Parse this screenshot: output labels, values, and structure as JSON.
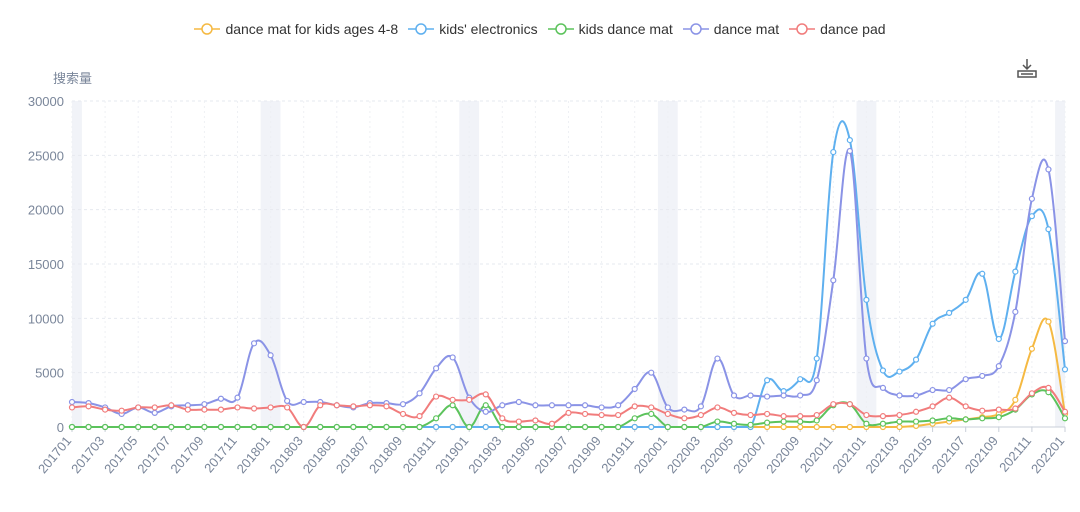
{
  "toolbar": {
    "download_icon": "download-icon"
  },
  "chart_data": {
    "type": "line",
    "ylabel": "搜索量",
    "ylim": [
      0,
      30000
    ],
    "yticks": [
      "30000",
      "25000",
      "20000",
      "15000",
      "10000",
      "5000",
      "0"
    ],
    "x": [
      "201701",
      "201702",
      "201703",
      "201704",
      "201705",
      "201706",
      "201707",
      "201708",
      "201709",
      "201710",
      "201711",
      "201712",
      "201801",
      "201802",
      "201803",
      "201804",
      "201805",
      "201806",
      "201807",
      "201808",
      "201809",
      "201810",
      "201811",
      "201812",
      "201901",
      "201902",
      "201903",
      "201904",
      "201905",
      "201906",
      "201907",
      "201908",
      "201909",
      "201910",
      "201911",
      "201912",
      "202001",
      "202002",
      "202003",
      "202004",
      "202005",
      "202006",
      "202007",
      "202008",
      "202009",
      "202010",
      "202011",
      "202012",
      "202101",
      "202102",
      "202103",
      "202104",
      "202105",
      "202106",
      "202107",
      "202108",
      "202109",
      "202110",
      "202111",
      "202112",
      "202201"
    ],
    "xticks": [
      "201701",
      "201703",
      "201705",
      "201707",
      "201709",
      "201711",
      "201801",
      "201803",
      "201805",
      "201807",
      "201809",
      "201811",
      "201901",
      "201903",
      "201905",
      "201907",
      "201909",
      "201911",
      "202001",
      "202003",
      "202005",
      "202007",
      "202009",
      "202011",
      "202101",
      "202103",
      "202105",
      "202107",
      "202109",
      "202111",
      "202201"
    ],
    "series": [
      {
        "name": "dance mat for kids ages 4-8",
        "color": "#f5b942",
        "values": [
          0,
          0,
          0,
          0,
          0,
          0,
          0,
          0,
          0,
          0,
          0,
          0,
          0,
          0,
          0,
          0,
          0,
          0,
          0,
          0,
          0,
          0,
          0,
          0,
          0,
          0,
          0,
          0,
          0,
          0,
          0,
          0,
          0,
          0,
          0,
          0,
          0,
          0,
          0,
          0,
          0,
          0,
          0,
          0,
          0,
          0,
          0,
          0,
          0,
          0,
          0,
          100,
          300,
          500,
          700,
          900,
          1200,
          2500,
          7200,
          9700,
          1200
        ]
      },
      {
        "name": "kids' electronics",
        "color": "#5fb0ef",
        "values": [
          0,
          0,
          0,
          0,
          0,
          0,
          0,
          0,
          0,
          0,
          0,
          0,
          0,
          0,
          0,
          0,
          0,
          0,
          0,
          0,
          0,
          0,
          0,
          0,
          0,
          0,
          0,
          0,
          0,
          0,
          0,
          0,
          0,
          0,
          0,
          0,
          0,
          0,
          0,
          0,
          0,
          0,
          4300,
          3300,
          4400,
          6300,
          25300,
          26400,
          11700,
          5200,
          5100,
          6200,
          9500,
          10500,
          11700,
          14100,
          8100,
          14300,
          19400,
          18200,
          5300
        ]
      },
      {
        "name": "kids dance mat",
        "color": "#5cc35c",
        "values": [
          0,
          0,
          0,
          0,
          0,
          0,
          0,
          0,
          0,
          0,
          0,
          0,
          0,
          0,
          0,
          0,
          0,
          0,
          0,
          0,
          0,
          0,
          800,
          2000,
          0,
          2000,
          0,
          0,
          0,
          0,
          0,
          0,
          0,
          0,
          800,
          1200,
          0,
          0,
          0,
          500,
          300,
          200,
          400,
          500,
          500,
          600,
          2000,
          2100,
          300,
          300,
          500,
          500,
          600,
          800,
          700,
          800,
          900,
          1600,
          3000,
          3200,
          800
        ]
      },
      {
        "name": "dance mat",
        "color": "#8a93e6",
        "values": [
          2300,
          2200,
          1800,
          1200,
          1800,
          1300,
          1900,
          2000,
          2100,
          2600,
          2700,
          7700,
          6600,
          2400,
          2300,
          2300,
          2000,
          1800,
          2200,
          2200,
          2100,
          3100,
          5400,
          6400,
          2700,
          1400,
          2000,
          2300,
          2000,
          2000,
          2000,
          2000,
          1800,
          2000,
          3500,
          5000,
          1800,
          1600,
          1900,
          6300,
          2900,
          2900,
          2800,
          2900,
          2900,
          4300,
          13500,
          25400,
          6300,
          3600,
          2900,
          2900,
          3400,
          3400,
          4400,
          4700,
          5600,
          10600,
          21000,
          23700,
          7900
        ]
      },
      {
        "name": "dance pad",
        "color": "#f17c7c",
        "values": [
          1800,
          1900,
          1600,
          1500,
          1800,
          1800,
          2000,
          1600,
          1600,
          1600,
          1800,
          1700,
          1800,
          1800,
          0,
          2000,
          2000,
          1900,
          2000,
          1900,
          1200,
          1000,
          2800,
          2500,
          2500,
          3000,
          800,
          500,
          600,
          300,
          1300,
          1200,
          1100,
          1100,
          1900,
          1800,
          1200,
          800,
          1100,
          1800,
          1300,
          1100,
          1200,
          1000,
          1000,
          1100,
          2100,
          2100,
          1100,
          1000,
          1100,
          1400,
          1900,
          2700,
          1900,
          1500,
          1600,
          1700,
          3100,
          3600,
          1400
        ]
      }
    ]
  }
}
